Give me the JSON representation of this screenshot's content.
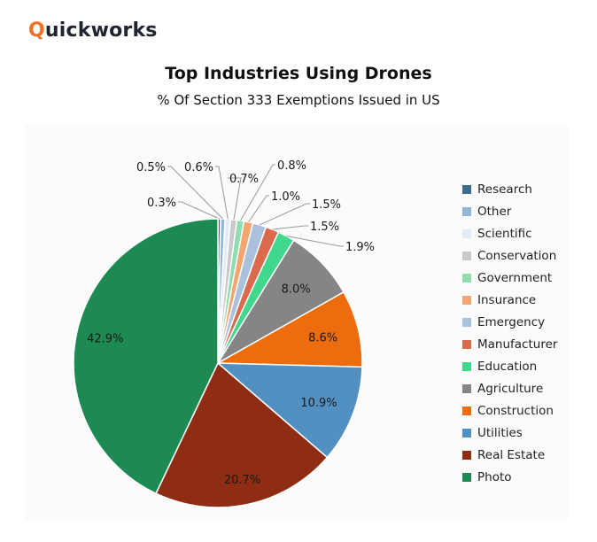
{
  "brand": {
    "first": "Q",
    "rest": "uickworks"
  },
  "chart_data": {
    "type": "pie",
    "title": "Top Industries Using Drones",
    "subtitle": "% Of Section 333 Exemptions Issued in US",
    "unit": "%",
    "start": "12 o'clock, clockwise",
    "legend_position": "right",
    "slices": [
      {
        "name": "Research",
        "value": 0.3,
        "label": "0.3%",
        "color": "#3e6c8f",
        "label_style": "leader"
      },
      {
        "name": "Other",
        "value": 0.5,
        "label": "0.5%",
        "color": "#93b6d8",
        "label_style": "leader"
      },
      {
        "name": "Scientific",
        "value": 0.6,
        "label": "0.6%",
        "color": "#e3ecf5",
        "label_style": "leader"
      },
      {
        "name": "Conservation",
        "value": 0.7,
        "label": "0.7%",
        "color": "#c9c9c9",
        "label_style": "leader"
      },
      {
        "name": "Government",
        "value": 0.8,
        "label": "0.8%",
        "color": "#8fdcae",
        "label_style": "leader"
      },
      {
        "name": "Insurance",
        "value": 1.0,
        "label": "1.0%",
        "color": "#f4a46f",
        "label_style": "leader"
      },
      {
        "name": "Emergency",
        "value": 1.5,
        "label": "1.5%",
        "color": "#a9c1dc",
        "label_style": "leader"
      },
      {
        "name": "Manufacturer",
        "value": 1.5,
        "label": "1.5%",
        "color": "#d96a4c",
        "label_style": "leader"
      },
      {
        "name": "Education",
        "value": 1.9,
        "label": "1.9%",
        "color": "#3fd88c",
        "label_style": "leader"
      },
      {
        "name": "Agriculture",
        "value": 8.0,
        "label": "8.0%",
        "color": "#858585",
        "label_style": "inside"
      },
      {
        "name": "Construction",
        "value": 8.6,
        "label": "8.6%",
        "color": "#ec6c0e",
        "label_style": "inside"
      },
      {
        "name": "Utilities",
        "value": 10.9,
        "label": "10.9%",
        "color": "#5390c2",
        "label_style": "inside"
      },
      {
        "name": "Real Estate",
        "value": 20.7,
        "label": "20.7%",
        "color": "#8f2c14",
        "label_style": "inside"
      },
      {
        "name": "Photo",
        "value": 42.9,
        "label": "42.9%",
        "color": "#1c8a52",
        "label_style": "inside"
      }
    ]
  }
}
